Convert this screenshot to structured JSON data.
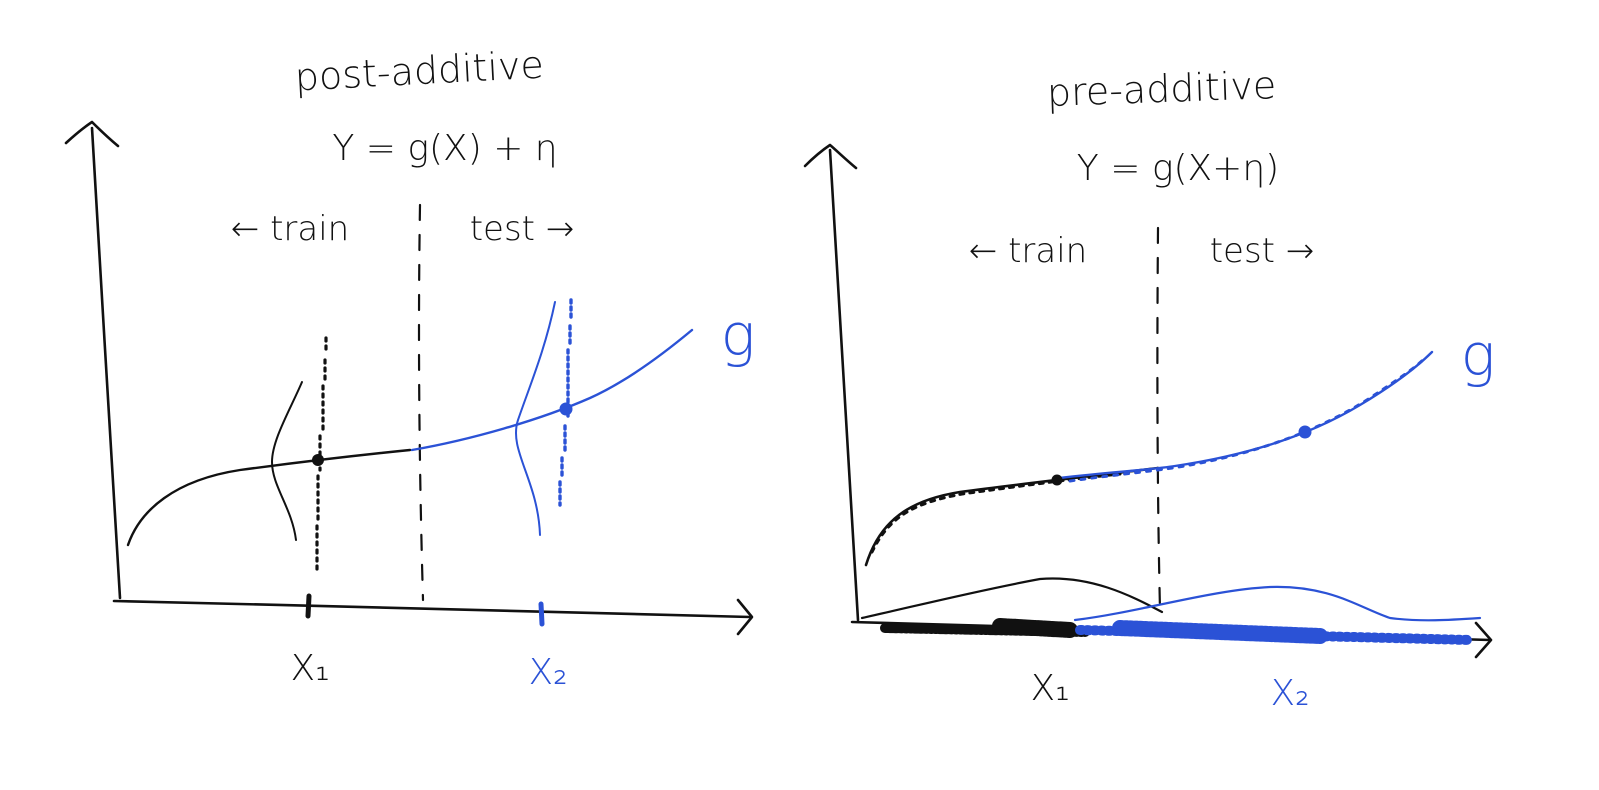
{
  "colors": {
    "ink": "#111111",
    "accent": "#2b52d6"
  },
  "left_panel": {
    "title": "post-additive",
    "equation": "Y = g(X) + η",
    "train_label": "← train",
    "test_label": "test →",
    "curve_label": "g",
    "x1_label": "X₁",
    "x2_label": "X₂"
  },
  "right_panel": {
    "title": "pre-additive",
    "equation": "Y = g(X+η)",
    "train_label": "← train",
    "test_label": "test →",
    "curve_label": "g",
    "x1_label": "X₁",
    "x2_label": "X₂"
  }
}
